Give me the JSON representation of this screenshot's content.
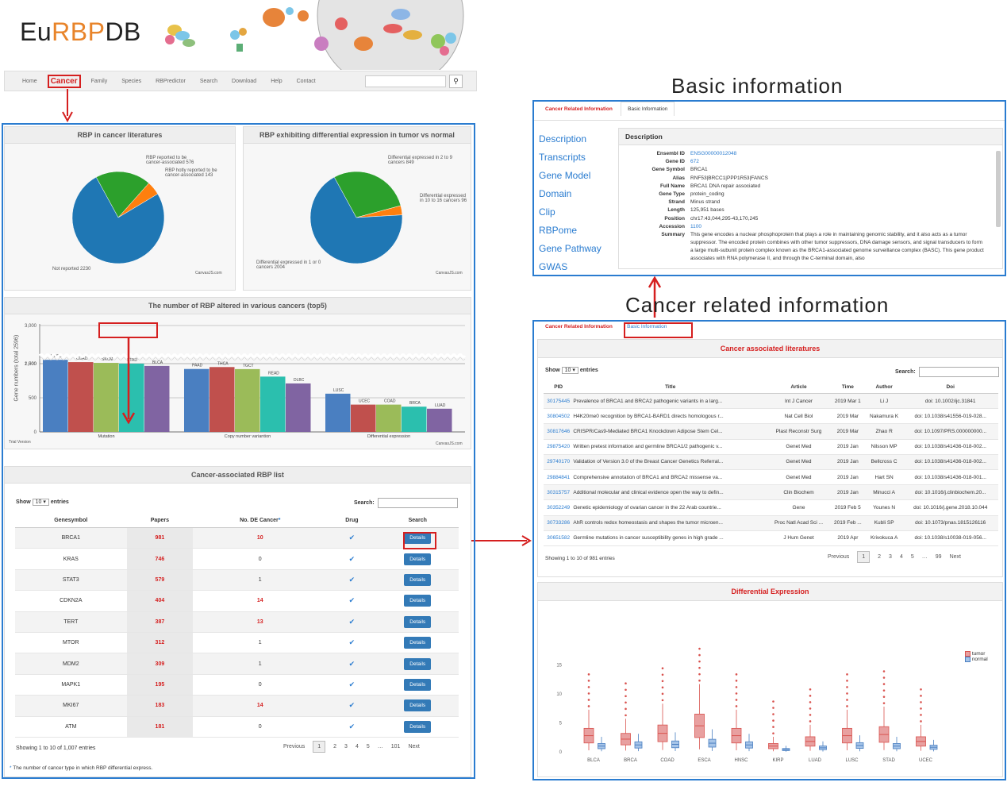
{
  "logo": {
    "part1": "Eu",
    "part2": "RBP",
    "part3": "DB"
  },
  "nav": {
    "items": [
      "Home",
      "Cancer",
      "Family",
      "Species",
      "RBPredictor",
      "Search",
      "Download",
      "Help",
      "Contact"
    ],
    "search_icon": "search-icon"
  },
  "left": {
    "pie1": {
      "title": "RBP in cancer literatures",
      "labels": [
        "RBP reported to be cancer-associated 576",
        "RBP hotly reported to be cancer-associated 143",
        "Not reported 2230"
      ],
      "credit": "CanvasJS.com"
    },
    "pie2": {
      "title": "RBP exhibiting differential expression in tumor vs normal",
      "labels": [
        "Differential expressed in 2 to 9 cancers 849",
        "Differential expressed in 10 to 16 cancers 96",
        "Differential expressed in 1 or 0 cancers 2004"
      ],
      "credit": "CanvasJS.com"
    },
    "bar": {
      "title": "The number of RBP altered in various cancers (top5)",
      "ylabel": "Gene numbers (total 2596)",
      "groups": [
        "Mutation",
        "Copy number variantion",
        "Differential expression"
      ],
      "trial": "Trial Version",
      "credit": "CanvasJS.com"
    },
    "list": {
      "title": "Cancer-associated RBP list",
      "show": "Show",
      "entries_val": "10",
      "entries": "entries",
      "search": "Search:",
      "headers": [
        "Genesymbol",
        "Papers",
        "No. DE Cancer",
        "Drug",
        "Search"
      ],
      "rows": [
        [
          "BRCA1",
          "981",
          "10"
        ],
        [
          "KRAS",
          "746",
          "0"
        ],
        [
          "STAT3",
          "579",
          "1"
        ],
        [
          "CDKN2A",
          "404",
          "14"
        ],
        [
          "TERT",
          "387",
          "13"
        ],
        [
          "MTOR",
          "312",
          "1"
        ],
        [
          "MDM2",
          "309",
          "1"
        ],
        [
          "MAPK1",
          "195",
          "0"
        ],
        [
          "MKI67",
          "183",
          "14"
        ],
        [
          "ATM",
          "181",
          "0"
        ]
      ],
      "btn": "Details",
      "check": "✔",
      "info": "Showing 1 to 10 of 1,007 entries",
      "pager": [
        "Previous",
        "1",
        "2",
        "3",
        "4",
        "5",
        "…",
        "101",
        "Next"
      ],
      "footnote": "The number of cancer type in which RBP differential express.",
      "star": "*"
    }
  },
  "basic": {
    "heading": "Basic information",
    "tabs": [
      "Cancer Related Information",
      "Basic Information"
    ],
    "side": [
      "Description",
      "Transcripts",
      "Gene Model",
      "Domain",
      "Clip",
      "RBPome",
      "Gene Pathway",
      "GWAS"
    ],
    "desc_title": "Description",
    "fields": [
      [
        "Ensembl ID",
        "ENSG00000012048"
      ],
      [
        "Gene ID",
        "672"
      ],
      [
        "Gene Symbol",
        "BRCA1"
      ],
      [
        "Alias",
        "RNF53|BRCC1|PPP1R53|FANCS"
      ],
      [
        "Full Name",
        "BRCA1 DNA repair associated"
      ],
      [
        "Gene Type",
        "protein_coding"
      ],
      [
        "Strand",
        "Minus strand"
      ],
      [
        "Length",
        "125,951 bases"
      ],
      [
        "Position",
        "chr17:43,044,295-43,170,245"
      ],
      [
        "Accession",
        "1100"
      ]
    ],
    "summary_key": "Summary",
    "summary": "This gene encodes a nuclear phosphoprotein that plays a role in maintaining genomic stability, and it also acts as a tumor suppressor. The encoded protein combines with other tumor suppressors, DNA damage sensors, and signal transducers to form a large multi-subunit protein complex known as the BRCA1-associated genome surveillance complex (BASC). This gene product associates with RNA polymerase II, and through the C-terminal domain, also"
  },
  "cancer": {
    "heading": "Cancer related information",
    "tabs": [
      "Cancer Related Information",
      "Basic Information"
    ],
    "lit_title": "Cancer associated literatures",
    "show": "Show",
    "entries_val": "10",
    "entries": "entries",
    "search": "Search:",
    "headers": [
      "PID",
      "Title",
      "Article",
      "Time",
      "Author",
      "Doi"
    ],
    "rows": [
      [
        "30175445",
        "Prevalence of BRCA1 and BRCA2 pathogenic variants in a larg...",
        "Int J Cancer",
        "2019 Mar 1",
        "Li J",
        "doi: 10.1002/ijc.31841"
      ],
      [
        "30804502",
        "H4K20me0 recognition by BRCA1-BARD1 directs homologous r...",
        "Nat Cell Biol",
        "2019 Mar",
        "Nakamura K",
        "doi: 10.1038/s41556-019-028..."
      ],
      [
        "30817646",
        "CRISPR/Cas9-Mediated BRCA1 Knockdown Adipose Stem Cel...",
        "Plast Reconstr Surg",
        "2019 Mar",
        "Zhao R",
        "doi: 10.1097/PRS.000000000..."
      ],
      [
        "29875420",
        "Written pretest information and germline BRCA1/2 pathogenic v...",
        "Genet Med",
        "2019 Jan",
        "Nilsson MP",
        "doi: 10.1038/s41436-018-002..."
      ],
      [
        "29740170",
        "Validation of Version 3.0 of the Breast Cancer Genetics Referral...",
        "Genet Med",
        "2019 Jan",
        "Bellcross C",
        "doi: 10.1038/s41436-018-002..."
      ],
      [
        "29884841",
        "Comprehensive annotation of BRCA1 and BRCA2 missense va...",
        "Genet Med",
        "2019 Jan",
        "Hart SN",
        "doi: 10.1038/s41436-018-001..."
      ],
      [
        "30315757",
        "Additional molecular and clinical evidence open the way to defin...",
        "Clin Biochem",
        "2019 Jan",
        "Minucci A",
        "doi: 10.1016/j.clinbiochem.20..."
      ],
      [
        "30352249",
        "Genetic epidemiology of ovarian cancer in the 22 Arab countrie...",
        "Gene",
        "2019 Feb 5",
        "Younes N",
        "doi: 10.1016/j.gene.2018.10.044"
      ],
      [
        "30733286",
        "AhR controls redox homeostasis and shapes the tumor microen...",
        "Proc Natl Acad Sci ...",
        "2019 Feb ...",
        "Kubli SP",
        "doi: 10.1073/pnas.1815126116"
      ],
      [
        "30651582",
        "Germline mutations in cancer susceptibility genes in high grade ...",
        "J Hum Genet",
        "2019 Apr",
        "Krivokuca A",
        "doi: 10.1038/s10038-019-056..."
      ]
    ],
    "info": "Showing 1 to 10 of 981 entries",
    "pager": [
      "Previous",
      "1",
      "2",
      "3",
      "4",
      "5",
      "…",
      "99",
      "Next"
    ],
    "de_title": "Differential Expression",
    "legend": [
      "tumor",
      "normal"
    ]
  },
  "chart_data": [
    {
      "type": "pie",
      "title": "RBP in cancer literatures",
      "labels": [
        "RBP reported to be cancer-associated",
        "RBP hotly reported to be cancer-associated",
        "Not reported"
      ],
      "values": [
        576,
        143,
        2230
      ],
      "colors": [
        "#2ca02c",
        "#ff7f0e",
        "#1f77b4"
      ]
    },
    {
      "type": "pie",
      "title": "RBP exhibiting differential expression in tumor vs normal",
      "labels": [
        "Differential expressed in 2 to 9 cancers",
        "Differential expressed in 10 to 16 cancers",
        "Differential expressed in 1 or 0 cancers"
      ],
      "values": [
        849,
        96,
        2004
      ],
      "colors": [
        "#2ca02c",
        "#ff7f0e",
        "#1f77b4"
      ]
    },
    {
      "type": "bar",
      "title": "The number of RBP altered in various cancers (top5)",
      "ylabel": "Gene numbers (total 2596)",
      "yticks": [
        "0",
        "500",
        "1,000",
        "2,500",
        "3,000"
      ],
      "groups": [
        {
          "name": "Mutation",
          "categories": [
            "UCEC",
            "COAD",
            "SKCM",
            "STAD",
            "BLCA"
          ],
          "values": [
            2550,
            2520,
            2510,
            2500,
            2470
          ]
        },
        {
          "name": "Copy number variantion",
          "categories": [
            "PAAD",
            "THCA",
            "TGCT",
            "READ",
            "DLBC"
          ],
          "values": [
            2430,
            950,
            920,
            810,
            710
          ]
        },
        {
          "name": "Differential expression",
          "categories": [
            "LUSC",
            "UCEC",
            "COAD",
            "BRCA",
            "LUAD"
          ],
          "values": [
            560,
            400,
            400,
            370,
            340
          ]
        }
      ],
      "colors": [
        "#4a7fc1",
        "#c0504d",
        "#9bbb59",
        "#2bbfae",
        "#8064a2"
      ]
    },
    {
      "type": "box",
      "title": "Differential Expression",
      "categories": [
        "BLCA",
        "BRCA",
        "COAD",
        "ESCA",
        "HNSC",
        "KIRP",
        "LUAD",
        "LUSC",
        "STAD",
        "UCEC"
      ],
      "yticks": [
        0,
        5,
        10,
        15
      ],
      "series": [
        {
          "name": "tumor",
          "median": [
            2.8,
            2.2,
            3.2,
            4.5,
            2.8,
            1.0,
            1.8,
            2.8,
            3.0,
            1.8
          ]
        },
        {
          "name": "normal",
          "median": [
            1.0,
            1.2,
            1.3,
            1.5,
            1.2,
            0.4,
            0.7,
            1.1,
            1.0,
            0.8
          ]
        }
      ],
      "colors": [
        "#d9534f",
        "#4a7fc1"
      ]
    }
  ]
}
